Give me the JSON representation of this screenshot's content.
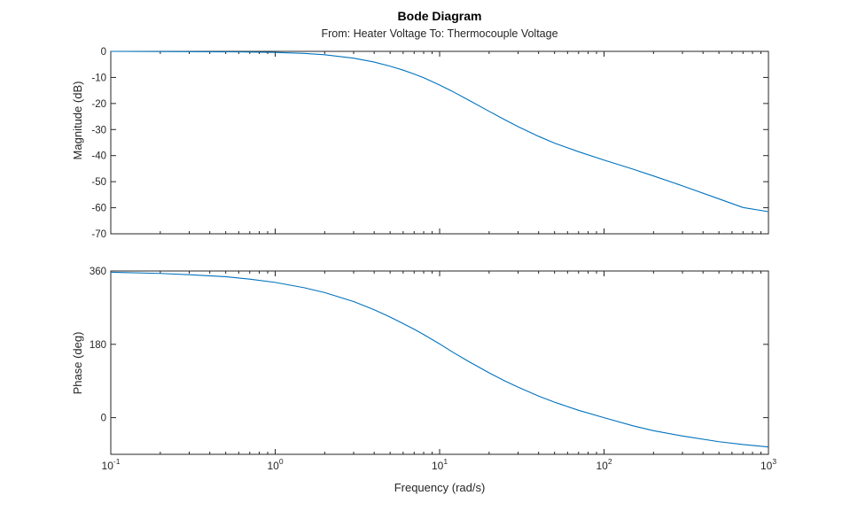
{
  "chart_data": {
    "type": "line",
    "title": "Bode Diagram",
    "subtitle": "From: Heater Voltage  To: Thermocouple Voltage",
    "xlabel": "Frequency (rad/s)",
    "xscale": "log",
    "xlim": [
      0.1,
      1000
    ],
    "x_ticks": [
      {
        "base": "10",
        "exp": "-1"
      },
      {
        "base": "10",
        "exp": "0"
      },
      {
        "base": "10",
        "exp": "1"
      },
      {
        "base": "10",
        "exp": "2"
      },
      {
        "base": "10",
        "exp": "3"
      }
    ],
    "grid": false,
    "line_color": "#0072BD",
    "panels": [
      {
        "ylabel": "Magnitude (dB)",
        "ylim": [
          -70,
          0
        ],
        "yticks": [
          "0",
          "-10",
          "-20",
          "-30",
          "-40",
          "-50",
          "-60",
          "-70"
        ],
        "series": [
          {
            "x": [
              0.1,
              0.3,
              0.6,
              1,
              1.5,
              2,
              3,
              4,
              5,
              6,
              7,
              8,
              10,
              12,
              15,
              20,
              25,
              30,
              40,
              50,
              70,
              100,
              150,
              200,
              300,
              500,
              700,
              1000
            ],
            "y": [
              0,
              -0.1,
              -0.2,
              -0.4,
              -0.8,
              -1.3,
              -2.6,
              -4.1,
              -5.7,
              -7.2,
              -8.7,
              -10.1,
              -12.9,
              -15.4,
              -18.7,
              -23.0,
              -26.3,
              -28.9,
              -32.6,
              -35.2,
              -38.5,
              -41.7,
              -45.2,
              -47.8,
              -51.6,
              -56.6,
              -59.9,
              -61.5
            ]
          }
        ]
      },
      {
        "ylabel": "Phase (deg)",
        "ylim": [
          -90,
          360
        ],
        "yticks": [
          "360",
          "180",
          "0"
        ],
        "series": [
          {
            "x": [
              0.1,
              0.2,
              0.3,
              0.5,
              0.7,
              1,
              1.5,
              2,
              3,
              4,
              5,
              6,
              7,
              8,
              10,
              12,
              15,
              20,
              25,
              30,
              40,
              50,
              70,
              100,
              150,
              200,
              300,
              500,
              700,
              1000
            ],
            "y": [
              357,
              354,
              351,
              346,
              340,
              332,
              319,
              307,
              285,
              265,
              247,
              231,
              217,
              204,
              181,
              161,
              138,
              110,
              90,
              75,
              53,
              38,
              18,
              0,
              -20,
              -32,
              -45,
              -59,
              -66,
              -72
            ]
          }
        ]
      }
    ]
  }
}
